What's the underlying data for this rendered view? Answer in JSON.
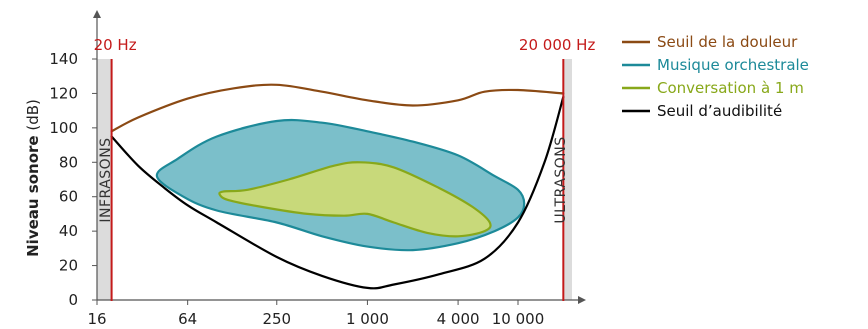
{
  "chart_data": {
    "type": "area",
    "ylabel": {
      "main": "Niveau sonore",
      "unit": "(dB)"
    },
    "xaxis": {
      "scale": "log",
      "unit": "Hz",
      "ticks": [
        {
          "value": 16,
          "label": "16"
        },
        {
          "value": 64,
          "label": "64"
        },
        {
          "value": 250,
          "label": "250"
        },
        {
          "value": 1000,
          "label": "1 000"
        },
        {
          "value": 4000,
          "label": "4 000"
        },
        {
          "value": 10000,
          "label": "10 000"
        }
      ]
    },
    "ylim": [
      0,
      150
    ],
    "yticks": [
      0,
      20,
      40,
      60,
      80,
      100,
      120,
      140
    ],
    "markers": [
      {
        "x": 20,
        "label": "20 Hz",
        "color": "#c41a1a"
      },
      {
        "x": 20000,
        "label": "20 000 Hz",
        "color": "#c41a1a"
      }
    ],
    "bands": [
      {
        "from": 16,
        "to": 20,
        "label": "INFRASONS"
      },
      {
        "from": 20000,
        "to": 30000,
        "label": "ULTRASONS"
      }
    ],
    "series": [
      {
        "name": "Seuil de la douleur",
        "kind": "line",
        "color": "#8b4a14",
        "points": [
          [
            20,
            98
          ],
          [
            30,
            106
          ],
          [
            64,
            117
          ],
          [
            130,
            123
          ],
          [
            250,
            125
          ],
          [
            500,
            121
          ],
          [
            1000,
            116
          ],
          [
            2000,
            113
          ],
          [
            4000,
            116
          ],
          [
            6000,
            121
          ],
          [
            10000,
            122
          ],
          [
            20000,
            120
          ]
        ]
      },
      {
        "name": "Musique orchestrale",
        "kind": "area",
        "color": "#1d8a99",
        "fill": "#7bbfca",
        "points": [
          [
            40,
            72
          ],
          [
            55,
            82
          ],
          [
            100,
            95
          ],
          [
            250,
            104
          ],
          [
            500,
            103
          ],
          [
            1000,
            98
          ],
          [
            2000,
            92
          ],
          [
            4000,
            84
          ],
          [
            7000,
            72
          ],
          [
            10000,
            64
          ],
          [
            11000,
            56
          ],
          [
            10000,
            48
          ],
          [
            7000,
            40
          ],
          [
            4000,
            33
          ],
          [
            2000,
            29
          ],
          [
            1000,
            31
          ],
          [
            500,
            37
          ],
          [
            250,
            45
          ],
          [
            100,
            52
          ],
          [
            60,
            60
          ],
          [
            40,
            72
          ]
        ]
      },
      {
        "name": "Conversation à 1 m",
        "kind": "area",
        "color": "#88a81a",
        "fill": "#c8d97a",
        "points": [
          [
            110,
            63
          ],
          [
            160,
            64
          ],
          [
            300,
            70
          ],
          [
            600,
            78
          ],
          [
            900,
            80
          ],
          [
            1500,
            77
          ],
          [
            3000,
            65
          ],
          [
            5000,
            54
          ],
          [
            6500,
            45
          ],
          [
            6000,
            40
          ],
          [
            4000,
            37
          ],
          [
            2500,
            39
          ],
          [
            1500,
            45
          ],
          [
            1000,
            50
          ],
          [
            700,
            49
          ],
          [
            400,
            50
          ],
          [
            200,
            54
          ],
          [
            120,
            58
          ],
          [
            105,
            61
          ],
          [
            110,
            63
          ]
        ]
      },
      {
        "name": "Seuil d’audibilité",
        "kind": "line",
        "color": "#000000",
        "points": [
          [
            20,
            95
          ],
          [
            30,
            78
          ],
          [
            45,
            65
          ],
          [
            64,
            55
          ],
          [
            100,
            45
          ],
          [
            250,
            25
          ],
          [
            500,
            14
          ],
          [
            1000,
            7
          ],
          [
            1500,
            9
          ],
          [
            3000,
            15
          ],
          [
            6000,
            24
          ],
          [
            10000,
            45
          ],
          [
            15000,
            80
          ],
          [
            20000,
            118
          ]
        ]
      }
    ],
    "legend": {
      "position": "top-right"
    }
  },
  "colors": {
    "band_fill": "#dcdcdc",
    "axis": "#555555",
    "marker": "#c41a1a"
  }
}
